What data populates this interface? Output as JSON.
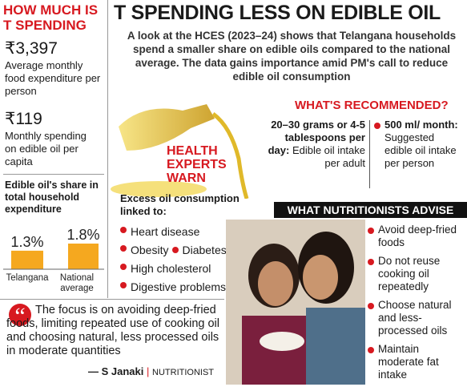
{
  "left_panel": {
    "title_lines": [
      "HOW MUCH IS",
      "T SPENDING"
    ],
    "stats": [
      {
        "value": "₹3,397",
        "label": "Average monthly food expenditure per person"
      },
      {
        "value": "₹119",
        "label": "Monthly spending on edible oil per capita"
      }
    ]
  },
  "chart_data": {
    "type": "bar",
    "title": "Edible oil's share in total household expenditure",
    "categories": [
      "Telangana",
      "National average"
    ],
    "values": [
      1.3,
      1.8
    ],
    "value_labels": [
      "1.3%",
      "1.8%"
    ],
    "color": "#f5a81f"
  },
  "header": {
    "title": "T SPENDING LESS ON EDIBLE OIL",
    "intro": "A look at the HCES (2023–24) shows that Telangana households spend a smaller share on edible oils compared to the national average. The data gains importance amid PM's call to reduce edible oil consumption"
  },
  "recommended": {
    "title": "WHAT'S RECOMMENDED?",
    "items": [
      {
        "amount": "20–30 grams or 4-5 tablespoons per day:",
        "text": "Edible oil intake per adult"
      },
      {
        "amount": "500 ml/ month:",
        "text": "Suggested edible oil intake per person"
      }
    ]
  },
  "experts": {
    "title": "HEALTH EXPERTS WARN",
    "lead": "Excess oil consumption linked to:",
    "items": [
      [
        "Heart disease"
      ],
      [
        "Obesity",
        "Diabetes"
      ],
      [
        "High cholesterol"
      ],
      [
        "Digestive problems"
      ]
    ]
  },
  "advise": {
    "title": "WHAT NUTRITIONISTS ADVISE",
    "items": [
      "Avoid deep-fried foods",
      "Do not reuse cooking oil repeatedly",
      "Choose natural and less-processed oils",
      "Maintain moderate fat intake"
    ]
  },
  "quote": {
    "text": "The focus is on avoiding deep-fried foods, limiting repeated use of cooking oil and choosing natural, less processed oils in moderate quantities",
    "author": "— S Janaki",
    "role": "NUTRITIONIST"
  }
}
